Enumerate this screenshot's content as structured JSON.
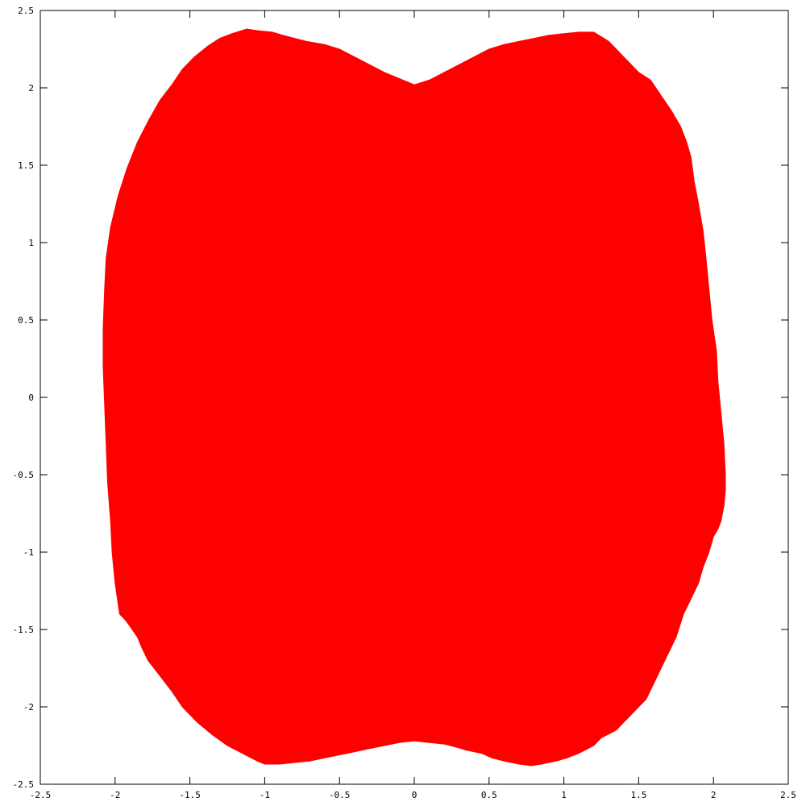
{
  "chart_data": {
    "type": "area",
    "title": "",
    "xlabel": "",
    "ylabel": "",
    "xlim": [
      -2.5,
      2.5
    ],
    "ylim": [
      -2.5,
      2.5
    ],
    "grid": false,
    "legend": "none",
    "x_ticks": [
      "-2.5",
      "-2",
      "-1.5",
      "-1",
      "-0.5",
      "0",
      "0.5",
      "1",
      "1.5",
      "2",
      "2.5"
    ],
    "y_ticks": [
      "-2.5",
      "-2",
      "-1.5",
      "-1",
      "-0.5",
      "0",
      "0.5",
      "1",
      "1.5",
      "2",
      "2.5"
    ],
    "fill_color": "#ff0000",
    "series": [
      {
        "x": [
          -1.97,
          -2.0,
          -2.02,
          -2.03,
          -2.05,
          -2.06,
          -2.07,
          -2.08,
          -2.08,
          -2.07,
          -2.06,
          -2.03,
          -1.98,
          -1.92,
          -1.85,
          -1.77,
          -1.7,
          -1.62,
          -1.55,
          -1.47,
          -1.38,
          -1.3,
          -1.22,
          -1.12,
          -1.05,
          -0.95,
          -0.88,
          -0.8,
          -0.72,
          -0.6,
          -0.5,
          -0.4,
          -0.3,
          -0.2,
          -0.1,
          0.0,
          0.1,
          0.2,
          0.3,
          0.4,
          0.5,
          0.6,
          0.7,
          0.8,
          0.9,
          1.0,
          1.1,
          1.2,
          1.3,
          1.4,
          1.5,
          1.58,
          1.65,
          1.72,
          1.78,
          1.82,
          1.85,
          1.87,
          1.9,
          1.93,
          1.95,
          1.97,
          1.99,
          2.02,
          2.03,
          2.05,
          2.07,
          2.08,
          2.08,
          2.07,
          2.05,
          2.03,
          2.0,
          1.97,
          1.93,
          1.9,
          1.85,
          1.8,
          1.75,
          1.7,
          1.65,
          1.6,
          1.55,
          1.48,
          1.4,
          1.35,
          1.25,
          1.2,
          1.1,
          1.02,
          0.95,
          0.85,
          0.78,
          0.7,
          0.6,
          0.52,
          0.45,
          0.35,
          0.28,
          0.2,
          0.1,
          0.0,
          -0.1,
          -0.2,
          -0.3,
          -0.4,
          -0.5,
          -0.6,
          -0.7,
          -0.8,
          -0.9,
          -1.0,
          -1.05,
          -1.15,
          -1.25,
          -1.35,
          -1.45,
          -1.55,
          -1.62,
          -1.7,
          -1.78,
          -1.82,
          -1.85,
          -1.9,
          -1.93
        ],
        "y": [
          -1.4,
          -1.2,
          -1.0,
          -0.8,
          -0.55,
          -0.3,
          -0.05,
          0.2,
          0.45,
          0.7,
          0.9,
          1.1,
          1.3,
          1.48,
          1.65,
          1.8,
          1.92,
          2.02,
          2.12,
          2.2,
          2.27,
          2.32,
          2.35,
          2.38,
          2.37,
          2.36,
          2.34,
          2.32,
          2.3,
          2.28,
          2.25,
          2.2,
          2.15,
          2.1,
          2.06,
          2.02,
          2.05,
          2.1,
          2.15,
          2.2,
          2.25,
          2.28,
          2.3,
          2.32,
          2.34,
          2.35,
          2.36,
          2.36,
          2.3,
          2.2,
          2.1,
          2.05,
          1.95,
          1.85,
          1.75,
          1.65,
          1.55,
          1.4,
          1.25,
          1.08,
          0.9,
          0.7,
          0.5,
          0.3,
          0.1,
          -0.1,
          -0.3,
          -0.5,
          -0.6,
          -0.7,
          -0.8,
          -0.85,
          -0.9,
          -1.0,
          -1.1,
          -1.2,
          -1.3,
          -1.4,
          -1.55,
          -1.65,
          -1.75,
          -1.85,
          -1.95,
          -2.02,
          -2.1,
          -2.15,
          -2.2,
          -2.25,
          -2.3,
          -2.33,
          -2.35,
          -2.37,
          -2.38,
          -2.37,
          -2.35,
          -2.33,
          -2.3,
          -2.28,
          -2.26,
          -2.24,
          -2.23,
          -2.22,
          -2.23,
          -2.25,
          -2.27,
          -2.29,
          -2.31,
          -2.33,
          -2.35,
          -2.36,
          -2.37,
          -2.37,
          -2.35,
          -2.3,
          -2.25,
          -2.18,
          -2.1,
          -2.0,
          -1.9,
          -1.8,
          -1.7,
          -1.62,
          -1.55,
          -1.48,
          -1.44
        ]
      }
    ]
  }
}
